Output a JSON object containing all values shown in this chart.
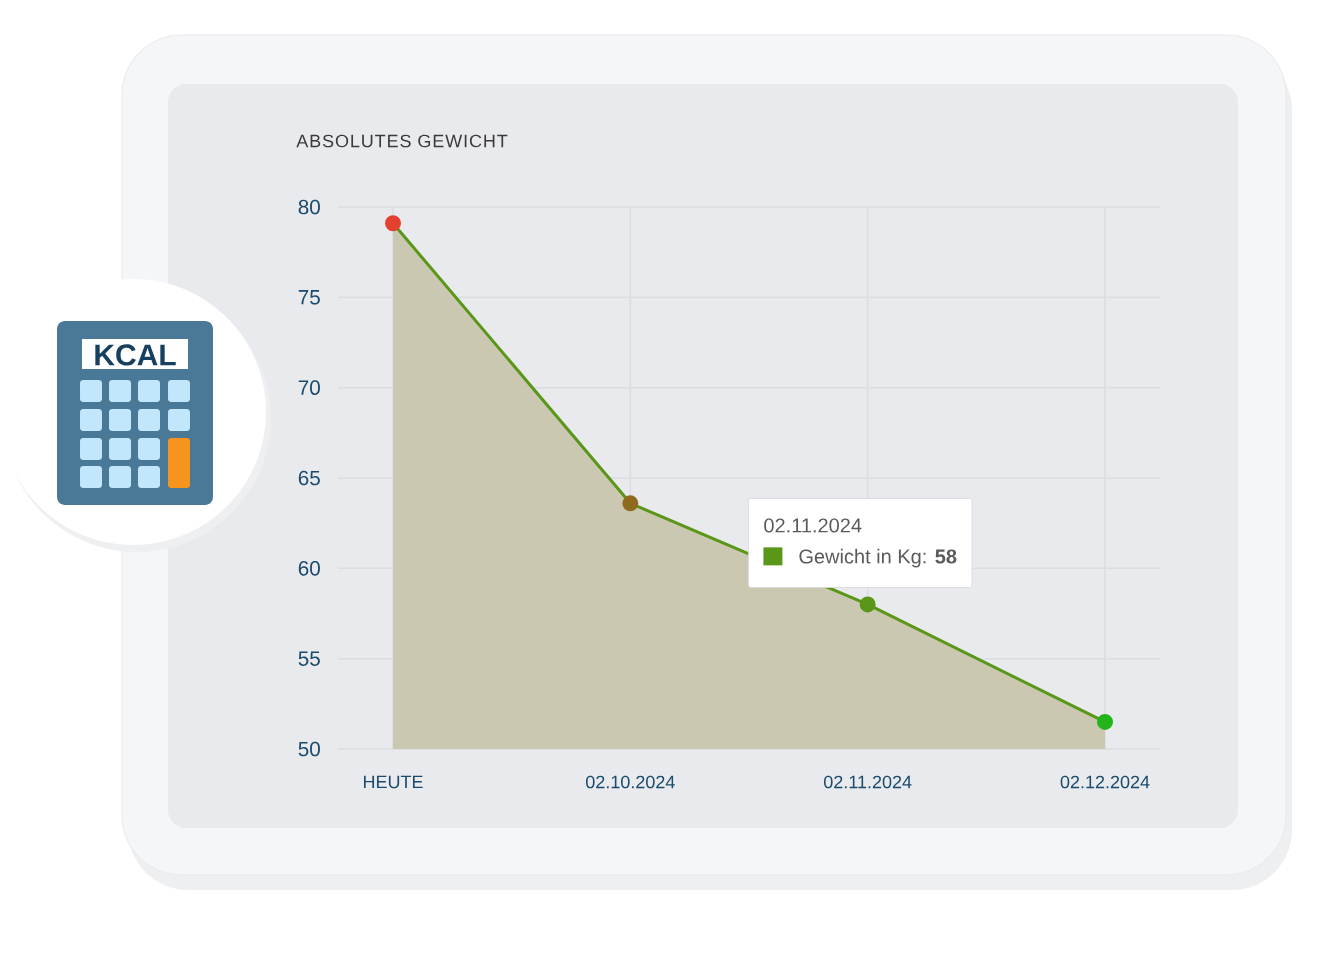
{
  "chart_data": {
    "type": "area",
    "title": "ABSOLUTES GEWICHT",
    "categories": [
      "HEUTE",
      "02.10.2024",
      "02.11.2024",
      "02.12.2024"
    ],
    "series": [
      {
        "color": "#5a9618",
        "colors": [
          "#e4402f",
          "#8f6a1e",
          "#5a9618",
          "#22b419"
        ],
        "values": [
          79.1,
          63.6,
          58,
          51.5
        ]
      }
    ],
    "ylim": [
      50,
      80
    ],
    "yticks": [
      50,
      55,
      60,
      65,
      70,
      75,
      80
    ],
    "grid": true,
    "marker": "circle",
    "annotations": [
      "02.11.2024",
      "Gewicht in Kg: **58**",
      "KCAL"
    ]
  }
}
